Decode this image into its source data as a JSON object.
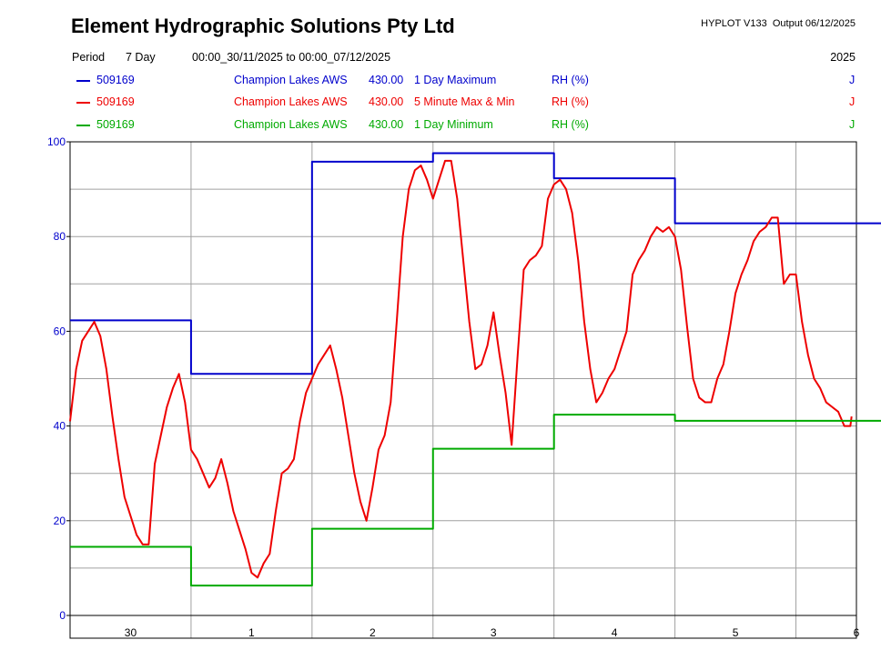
{
  "header": {
    "title": "Element Hydrographic Solutions Pty Ltd",
    "program": "HYPLOT V133",
    "output": "Output 06/12/2025",
    "period_label": "Period",
    "period_value": "7 Day",
    "range": "00:00_30/11/2025 to 00:00_07/12/2025",
    "year": "2025"
  },
  "legend": [
    {
      "site": "509169",
      "name": "Champion Lakes AWS",
      "code": "430.00",
      "stat": "1 Day Maximum",
      "units": "RH (%)",
      "flag": "J",
      "color": "#0000cc"
    },
    {
      "site": "509169",
      "name": "Champion Lakes AWS",
      "code": "430.00",
      "stat": "5 Minute Max & Min",
      "units": "RH (%)",
      "flag": "J",
      "color": "#ee0000"
    },
    {
      "site": "509169",
      "name": "Champion Lakes AWS",
      "code": "430.00",
      "stat": "1 Day Minimum",
      "units": "RH (%)",
      "flag": "J",
      "color": "#00aa00"
    }
  ],
  "chart_data": {
    "type": "line",
    "ylim": [
      0,
      100
    ],
    "yticks": [
      "0",
      "20",
      "40",
      "60",
      "80",
      "100"
    ],
    "xlim": [
      0,
      6.5
    ],
    "xtick_labels": [
      "30",
      "1",
      "2",
      "3",
      "4",
      "5",
      "6"
    ],
    "grid": true,
    "series": [
      {
        "name": "1 Day Maximum",
        "color": "#0000cc",
        "step": true,
        "x": [
          0,
          1,
          2,
          3,
          4,
          5,
          6
        ],
        "y": [
          62.3,
          51.0,
          95.8,
          97.6,
          92.3,
          82.8,
          82.8
        ]
      },
      {
        "name": "5 Minute Max & Min",
        "color": "#ee0000",
        "step": false,
        "x": [
          0,
          0.05,
          0.1,
          0.15,
          0.2,
          0.25,
          0.3,
          0.35,
          0.4,
          0.45,
          0.5,
          0.55,
          0.6,
          0.65,
          0.7,
          0.75,
          0.8,
          0.85,
          0.9,
          0.95,
          1.0,
          1.05,
          1.1,
          1.15,
          1.2,
          1.25,
          1.3,
          1.35,
          1.4,
          1.45,
          1.5,
          1.55,
          1.6,
          1.65,
          1.7,
          1.75,
          1.8,
          1.85,
          1.9,
          1.95,
          2.0,
          2.05,
          2.1,
          2.15,
          2.2,
          2.25,
          2.3,
          2.35,
          2.4,
          2.45,
          2.5,
          2.55,
          2.6,
          2.65,
          2.7,
          2.75,
          2.8,
          2.85,
          2.9,
          2.95,
          3.0,
          3.05,
          3.1,
          3.15,
          3.2,
          3.25,
          3.3,
          3.35,
          3.4,
          3.45,
          3.5,
          3.55,
          3.6,
          3.65,
          3.7,
          3.75,
          3.8,
          3.85,
          3.9,
          3.95,
          4.0,
          4.05,
          4.1,
          4.15,
          4.2,
          4.25,
          4.3,
          4.35,
          4.4,
          4.45,
          4.5,
          4.55,
          4.6,
          4.65,
          4.7,
          4.75,
          4.8,
          4.85,
          4.9,
          4.95,
          5.0,
          5.05,
          5.1,
          5.15,
          5.2,
          5.25,
          5.3,
          5.35,
          5.4,
          5.45,
          5.5,
          5.55,
          5.6,
          5.65,
          5.7,
          5.75,
          5.8,
          5.85,
          5.9,
          5.95,
          6.0,
          6.05,
          6.1,
          6.15,
          6.2,
          6.25,
          6.3,
          6.35,
          6.4,
          6.45,
          6.46
        ],
        "y": [
          41,
          52,
          58,
          60,
          62,
          59,
          52,
          42,
          33,
          25,
          21,
          17,
          15,
          15,
          32,
          38,
          44,
          48,
          51,
          45,
          35,
          33,
          30,
          27,
          29,
          33,
          28,
          22,
          18,
          14,
          9,
          8,
          11,
          13,
          22,
          30,
          31,
          33,
          41,
          47,
          50,
          53,
          55,
          57,
          52,
          46,
          38,
          30,
          24,
          20,
          27,
          35,
          38,
          45,
          62,
          80,
          90,
          94,
          95,
          92,
          88,
          92,
          96,
          96,
          88,
          75,
          62,
          52,
          53,
          57,
          64,
          55,
          47,
          36,
          55,
          73,
          75,
          76,
          78,
          88,
          91,
          92,
          90,
          85,
          75,
          62,
          52,
          45,
          47,
          50,
          52,
          56,
          60,
          72,
          75,
          77,
          80,
          82,
          81,
          82,
          80,
          73,
          61,
          50,
          46,
          45,
          45,
          50,
          53,
          60,
          68,
          72,
          75,
          79,
          81,
          82,
          84,
          84,
          70,
          72,
          72,
          62,
          55,
          50,
          48,
          45,
          44,
          43,
          40,
          40,
          42
        ]
      },
      {
        "name": "1 Day Minimum",
        "color": "#00aa00",
        "step": true,
        "x": [
          0,
          1,
          2,
          3,
          4,
          5,
          6
        ],
        "y": [
          14.5,
          6.3,
          18.3,
          35.2,
          42.4,
          41.1,
          41.1
        ]
      }
    ]
  }
}
